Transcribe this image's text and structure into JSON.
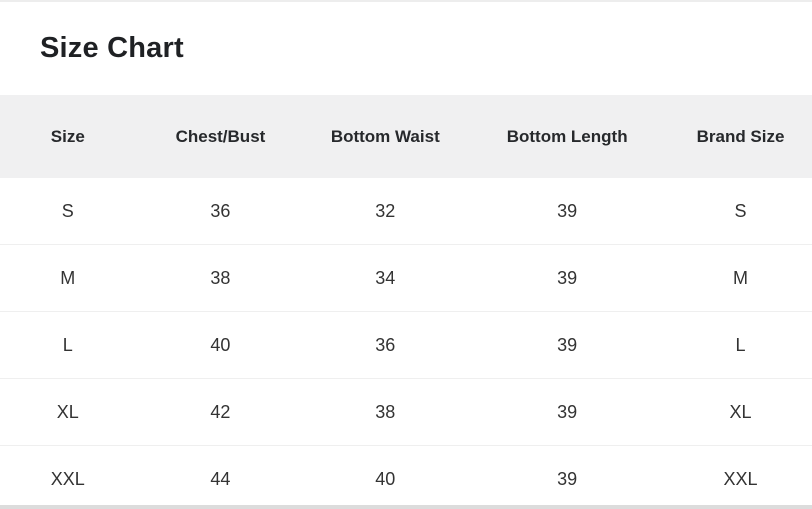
{
  "page": {
    "title": "Size Chart"
  },
  "size_chart": {
    "columns": [
      "Size",
      "Chest/Bust",
      "Bottom Waist",
      "Bottom Length",
      "Brand Size"
    ],
    "rows": [
      [
        "S",
        "36",
        "32",
        "39",
        "S"
      ],
      [
        "M",
        "38",
        "34",
        "39",
        "M"
      ],
      [
        "L",
        "40",
        "36",
        "39",
        "L"
      ],
      [
        "XL",
        "42",
        "38",
        "39",
        "XL"
      ],
      [
        "XXL",
        "44",
        "40",
        "39",
        "XXL"
      ]
    ]
  },
  "colors": {
    "page_bg": "#ffffff",
    "header_bg": "#f0f0f1",
    "row_divider": "#efefef",
    "title_text": "#1f2124",
    "header_text": "#27292c",
    "cell_text": "#333333",
    "top_rule": "#ededed",
    "bottom_rule": "#dcdcdc"
  }
}
